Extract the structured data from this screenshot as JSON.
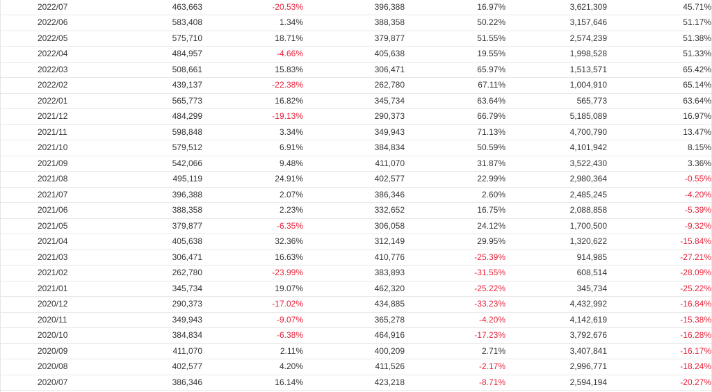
{
  "colors": {
    "negative": "#e6233a",
    "text": "#333333",
    "row_border": "#e8e8e8"
  },
  "rows": [
    {
      "period": "2022/07",
      "value": "463,663",
      "change": "-20.53%",
      "value2": "396,388",
      "change2": "16.97%",
      "cumulative": "3,621,309",
      "cumulative_change": "45.71%"
    },
    {
      "period": "2022/06",
      "value": "583,408",
      "change": "1.34%",
      "value2": "388,358",
      "change2": "50.22%",
      "cumulative": "3,157,646",
      "cumulative_change": "51.17%"
    },
    {
      "period": "2022/05",
      "value": "575,710",
      "change": "18.71%",
      "value2": "379,877",
      "change2": "51.55%",
      "cumulative": "2,574,239",
      "cumulative_change": "51.38%"
    },
    {
      "period": "2022/04",
      "value": "484,957",
      "change": "-4.66%",
      "value2": "405,638",
      "change2": "19.55%",
      "cumulative": "1,998,528",
      "cumulative_change": "51.33%"
    },
    {
      "period": "2022/03",
      "value": "508,661",
      "change": "15.83%",
      "value2": "306,471",
      "change2": "65.97%",
      "cumulative": "1,513,571",
      "cumulative_change": "65.42%"
    },
    {
      "period": "2022/02",
      "value": "439,137",
      "change": "-22.38%",
      "value2": "262,780",
      "change2": "67.11%",
      "cumulative": "1,004,910",
      "cumulative_change": "65.14%"
    },
    {
      "period": "2022/01",
      "value": "565,773",
      "change": "16.82%",
      "value2": "345,734",
      "change2": "63.64%",
      "cumulative": "565,773",
      "cumulative_change": "63.64%"
    },
    {
      "period": "2021/12",
      "value": "484,299",
      "change": "-19.13%",
      "value2": "290,373",
      "change2": "66.79%",
      "cumulative": "5,185,089",
      "cumulative_change": "16.97%"
    },
    {
      "period": "2021/11",
      "value": "598,848",
      "change": "3.34%",
      "value2": "349,943",
      "change2": "71.13%",
      "cumulative": "4,700,790",
      "cumulative_change": "13.47%"
    },
    {
      "period": "2021/10",
      "value": "579,512",
      "change": "6.91%",
      "value2": "384,834",
      "change2": "50.59%",
      "cumulative": "4,101,942",
      "cumulative_change": "8.15%"
    },
    {
      "period": "2021/09",
      "value": "542,066",
      "change": "9.48%",
      "value2": "411,070",
      "change2": "31.87%",
      "cumulative": "3,522,430",
      "cumulative_change": "3.36%"
    },
    {
      "period": "2021/08",
      "value": "495,119",
      "change": "24.91%",
      "value2": "402,577",
      "change2": "22.99%",
      "cumulative": "2,980,364",
      "cumulative_change": "-0.55%"
    },
    {
      "period": "2021/07",
      "value": "396,388",
      "change": "2.07%",
      "value2": "386,346",
      "change2": "2.60%",
      "cumulative": "2,485,245",
      "cumulative_change": "-4.20%"
    },
    {
      "period": "2021/06",
      "value": "388,358",
      "change": "2.23%",
      "value2": "332,652",
      "change2": "16.75%",
      "cumulative": "2,088,858",
      "cumulative_change": "-5.39%"
    },
    {
      "period": "2021/05",
      "value": "379,877",
      "change": "-6.35%",
      "value2": "306,058",
      "change2": "24.12%",
      "cumulative": "1,700,500",
      "cumulative_change": "-9.32%"
    },
    {
      "period": "2021/04",
      "value": "405,638",
      "change": "32.36%",
      "value2": "312,149",
      "change2": "29.95%",
      "cumulative": "1,320,622",
      "cumulative_change": "-15.84%"
    },
    {
      "period": "2021/03",
      "value": "306,471",
      "change": "16.63%",
      "value2": "410,776",
      "change2": "-25.39%",
      "cumulative": "914,985",
      "cumulative_change": "-27.21%"
    },
    {
      "period": "2021/02",
      "value": "262,780",
      "change": "-23.99%",
      "value2": "383,893",
      "change2": "-31.55%",
      "cumulative": "608,514",
      "cumulative_change": "-28.09%"
    },
    {
      "period": "2021/01",
      "value": "345,734",
      "change": "19.07%",
      "value2": "462,320",
      "change2": "-25.22%",
      "cumulative": "345,734",
      "cumulative_change": "-25.22%"
    },
    {
      "period": "2020/12",
      "value": "290,373",
      "change": "-17.02%",
      "value2": "434,885",
      "change2": "-33.23%",
      "cumulative": "4,432,992",
      "cumulative_change": "-16.84%"
    },
    {
      "period": "2020/11",
      "value": "349,943",
      "change": "-9.07%",
      "value2": "365,278",
      "change2": "-4.20%",
      "cumulative": "4,142,619",
      "cumulative_change": "-15.38%"
    },
    {
      "period": "2020/10",
      "value": "384,834",
      "change": "-6.38%",
      "value2": "464,916",
      "change2": "-17.23%",
      "cumulative": "3,792,676",
      "cumulative_change": "-16.28%"
    },
    {
      "period": "2020/09",
      "value": "411,070",
      "change": "2.11%",
      "value2": "400,209",
      "change2": "2.71%",
      "cumulative": "3,407,841",
      "cumulative_change": "-16.17%"
    },
    {
      "period": "2020/08",
      "value": "402,577",
      "change": "4.20%",
      "value2": "411,526",
      "change2": "-2.17%",
      "cumulative": "2,996,771",
      "cumulative_change": "-18.24%"
    },
    {
      "period": "2020/07",
      "value": "386,346",
      "change": "16.14%",
      "value2": "423,218",
      "change2": "-8.71%",
      "cumulative": "2,594,194",
      "cumulative_change": "-20.27%"
    }
  ]
}
